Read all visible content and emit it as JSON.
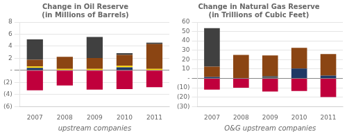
{
  "chart_data": [
    {
      "type": "bar",
      "stacked": true,
      "title": "Change in Oil Reserve\n(in Millions of Barrels)",
      "xlabel": "upstream companies",
      "categories": [
        "2007",
        "2008",
        "2009",
        "2010",
        "2011"
      ],
      "series": [
        {
          "color": "#C0003C",
          "values": [
            -3.3,
            -2.5,
            -3.2,
            -3.1,
            -2.8
          ]
        },
        {
          "color": "#1F3864",
          "values": [
            0.4,
            0.0,
            0.0,
            0.5,
            0.0
          ]
        },
        {
          "color": "#FFD700",
          "values": [
            0.25,
            0.25,
            0.25,
            0.25,
            0.25
          ]
        },
        {
          "color": "#8B4513",
          "values": [
            1.1,
            2.0,
            1.8,
            1.8,
            4.1
          ]
        },
        {
          "color": "#404040",
          "values": [
            3.4,
            0.0,
            3.5,
            0.3,
            0.25
          ]
        }
      ],
      "ylim": [
        -6,
        8
      ],
      "yticks": [
        {
          "value": -6,
          "label": "(6)"
        },
        {
          "value": -4,
          "label": "(4)"
        },
        {
          "value": -2,
          "label": "(2)"
        },
        {
          "value": 0,
          "label": "-"
        },
        2,
        4,
        6,
        8
      ],
      "grid": true
    },
    {
      "type": "bar",
      "stacked": true,
      "title": "Change in Natural Gas Reserve\n(in Trillions of Cubic Feet)",
      "xlabel": "O&G upstream companies",
      "categories": [
        "2007",
        "2008",
        "2009",
        "2010",
        "2011"
      ],
      "series": [
        {
          "color": "#C0003C",
          "values": [
            -12.0,
            -10.0,
            -14.0,
            -13.5,
            -20.0
          ]
        },
        {
          "color": "#1F3864",
          "values": [
            1.5,
            0.0,
            0.0,
            10.5,
            3.0
          ]
        },
        {
          "color": "#606060",
          "values": [
            0.0,
            0.0,
            2.5,
            0.0,
            0.0
          ]
        },
        {
          "color": "#8B4513",
          "values": [
            11.0,
            25.0,
            22.0,
            22.0,
            23.0
          ]
        },
        {
          "color": "#404040",
          "values": [
            41.0,
            0.0,
            0.0,
            0.0,
            0.0
          ]
        }
      ],
      "ylim": [
        -30,
        60
      ],
      "yticks": [
        {
          "value": -30,
          "label": "(30)"
        },
        {
          "value": -20,
          "label": "(20)"
        },
        {
          "value": -10,
          "label": "(10)"
        },
        {
          "value": 0,
          "label": "-"
        },
        10,
        20,
        30,
        40,
        50,
        60
      ],
      "grid": true
    }
  ]
}
